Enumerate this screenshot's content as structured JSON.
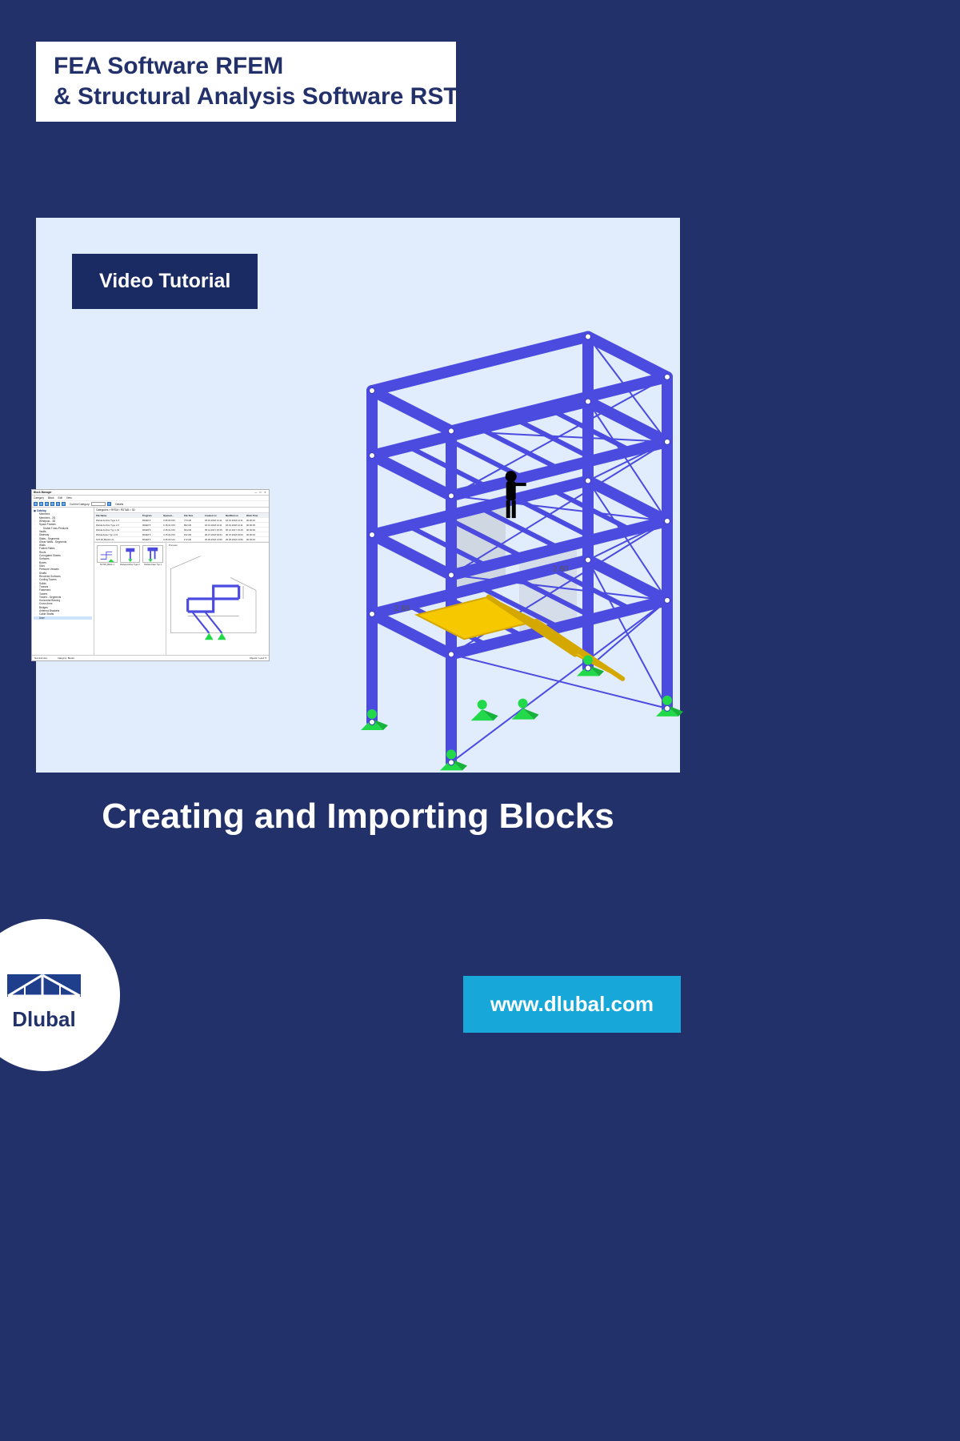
{
  "header": {
    "line1": "FEA Software RFEM",
    "line2": "& Structural Analysis Software RSTAB"
  },
  "panel": {
    "badge": "Video Tutorial"
  },
  "main_title": "Creating and Importing Blocks",
  "brand": {
    "name": "Dlubal",
    "url": "www.dlubal.com"
  },
  "colors": {
    "page_bg": "#23316b",
    "panel_bg": "#e1edfd",
    "badge_bg": "#1a2a63",
    "accent": "#17a7d8",
    "struct_frame": "#4b4be0",
    "struct_frame_dark": "#3b3bc0",
    "struct_brace": "#4b4be0",
    "struct_stairs": "#f5c800",
    "struct_stairs_dark": "#d4a800",
    "struct_supports": "#22d94a",
    "struct_ghost": "#b0b0b0",
    "struct_person": "#000000",
    "struct_joint": "#ffffff"
  },
  "block_manager": {
    "title": "Block Manager",
    "menus": [
      "Category",
      "Block",
      "Edit",
      "View"
    ],
    "toolbar_label": "Current Category:",
    "toolbar_details": "Details",
    "category_path": "Categories > RFEM / RSTAB > 3D",
    "tree": {
      "root": "Catalog",
      "items": [
        "Members",
        "Members - 2D",
        "Windpost - 3D",
        "Space Frames",
        "  Dlubal Truss-Products",
        "Vaults",
        "Stairway",
        "Slabs - Segments",
        "Shear Walls - Segments",
        "Walls",
        "Folded Plates",
        "Roofs",
        "Corrugated Sheets",
        "Surfaces",
        "Boxes",
        "Silos",
        "Pressure Vessels",
        "Shafts",
        "Revolved Surfaces",
        "Cooling Towers",
        "Solids",
        "Trusses",
        "Fasteners",
        "Towers",
        "Towers - Segments",
        "Horizontal Bracing",
        "Cross Arms",
        "Bridges",
        "Antenna Brackets",
        "Cable Shafts",
        "User"
      ],
      "highlight_index": 30
    },
    "table": {
      "columns": [
        "File Name",
        "Program",
        "Opened…",
        "File Size",
        "Created on",
        "Modified on",
        "Work Time"
      ],
      "rows": [
        [
          "Dlubal Anchor Type 1.rf",
          "RFEM 5",
          "3.05.03.153",
          "773 kB",
          "18.01.2018 14:11",
          "18.01.2018 14:11",
          "00:00:02"
        ],
        [
          "Dlubal Anchor Type 2.rf",
          "RFEM 5",
          "3.15.01.153",
          "802 kB",
          "18.01.2018 14:11",
          "18.01.2018 14:11",
          "00:00:05"
        ],
        [
          "Dlubal Anchor Typ 1.rfs",
          "RFEM 5",
          "3.15.01.153",
          "624 kB",
          "05.12.2017 15:25",
          "05.12.2017 15:25",
          "00:00:00"
        ],
        [
          "Dlubal Anker Typ 2.rfs",
          "RFEM 5",
          "3.15.01.153",
          "152 kB",
          "06.07.2018 09:51",
          "06.07.2018 09:53",
          "00:00:02"
        ],
        [
          "SVT18_Block1.rfs",
          "RFEM 5",
          "3.25.00.141",
          "172 kB",
          "25.06.2018 13:56",
          "25.06.2018 13:56",
          "00:00:02"
        ]
      ]
    },
    "thumbnails_label": "Thumbnails",
    "thumbnails": [
      {
        "label": "SVT18_Block 1"
      },
      {
        "label": "Dlubal Anchor Type 2"
      },
      {
        "label": "Dlubal Anker Typ 1"
      }
    ],
    "preview_label": "Preview",
    "statusbar": {
      "left1": "Nominal size:",
      "left2": "Category: Blocks",
      "right": "Objects / Land: 5"
    }
  },
  "structure": {
    "frame_color": "#4b4be0",
    "brace_color": "#4b4be0",
    "stairs_color": "#f5c800",
    "support_color": "#22d94a",
    "ghost_color": "#b0b0b0",
    "person_color": "#000000",
    "joint_color": "#ffffff",
    "frame_stroke": 14,
    "brace_stroke": 2,
    "note": "Isometric 3-bay steel frame with a yellow staircase insert, ghosted insertion-preview panels, a figure on the mid floor, and green tetrahedral supports."
  }
}
